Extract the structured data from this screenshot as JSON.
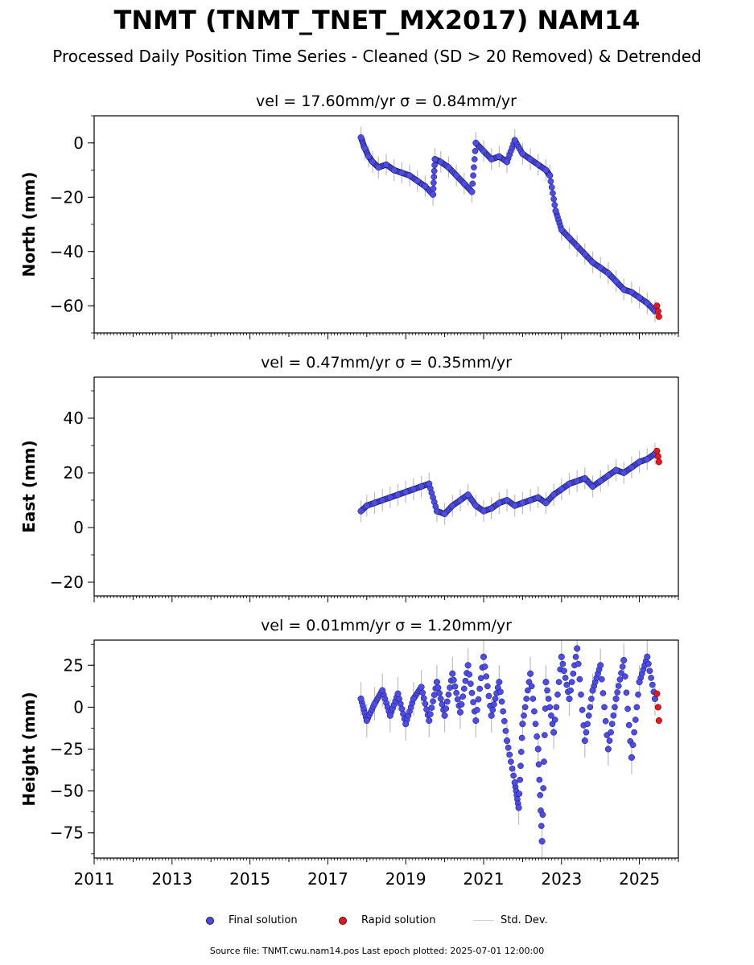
{
  "figure": {
    "title": "TNMT (TNMT_TNET_MX2017) NAM14",
    "subtitle": "Processed Daily Position Time Series - Cleaned (SD > 20 Removed) & Detrended",
    "footer": "Source file: TNMT.cwu.nam14.pos  Last epoch plotted: 2025-07-01 12:00:00"
  },
  "legend": {
    "final_label": "Final solution",
    "rapid_label": "Rapid solution",
    "std_label": "Std. Dev."
  },
  "colors": {
    "final": "#4b4bef",
    "rapid": "#e8151a",
    "std": "#bdbdbd",
    "marker_edge": "#1a1a40"
  },
  "chart_data": [
    {
      "type": "scatter",
      "title": "vel = 17.60mm/yr   σ = 0.84mm/yr",
      "ylabel": "North (mm)",
      "xlim": [
        2011.0,
        2026.0
      ],
      "ylim": [
        -70,
        10
      ],
      "yticks": [
        0,
        -20,
        -40,
        -60
      ],
      "series": [
        {
          "name": "Final solution",
          "x": [
            2017.85,
            2017.95,
            2018.05,
            2018.15,
            2018.3,
            2018.5,
            2018.7,
            2018.9,
            2019.1,
            2019.3,
            2019.5,
            2019.7,
            2019.75,
            2019.9,
            2020.1,
            2020.3,
            2020.5,
            2020.7,
            2020.8,
            2021.0,
            2021.2,
            2021.4,
            2021.6,
            2021.8,
            2022.0,
            2022.2,
            2022.4,
            2022.6,
            2022.7,
            2022.85,
            2023.0,
            2023.2,
            2023.4,
            2023.6,
            2023.8,
            2024.0,
            2024.2,
            2024.4,
            2024.6,
            2024.8,
            2025.0,
            2025.2,
            2025.4
          ],
          "y": [
            2,
            -2,
            -5,
            -7,
            -9,
            -8,
            -10,
            -11,
            -12,
            -14,
            -16,
            -19,
            -6,
            -7,
            -9,
            -12,
            -15,
            -18,
            0,
            -3,
            -6,
            -5,
            -7,
            1,
            -4,
            -6,
            -8,
            -10,
            -12,
            -25,
            -32,
            -35,
            -38,
            -41,
            -44,
            -46,
            -48,
            -51,
            -54,
            -55,
            -57,
            -59,
            -62
          ]
        },
        {
          "name": "Rapid solution",
          "x": [
            2025.45,
            2025.48,
            2025.5
          ],
          "y": [
            -60,
            -62,
            -64
          ]
        }
      ]
    },
    {
      "type": "scatter",
      "title": "vel = 0.47mm/yr   σ = 0.35mm/yr",
      "ylabel": "East (mm)",
      "xlim": [
        2011.0,
        2026.0
      ],
      "ylim": [
        -25,
        55
      ],
      "yticks": [
        40,
        20,
        0,
        -20
      ],
      "series": [
        {
          "name": "Final solution",
          "x": [
            2017.85,
            2018.0,
            2018.2,
            2018.4,
            2018.6,
            2018.8,
            2019.0,
            2019.2,
            2019.4,
            2019.6,
            2019.8,
            2020.0,
            2020.2,
            2020.4,
            2020.6,
            2020.8,
            2021.0,
            2021.2,
            2021.4,
            2021.6,
            2021.8,
            2022.0,
            2022.2,
            2022.4,
            2022.6,
            2022.8,
            2023.0,
            2023.2,
            2023.4,
            2023.6,
            2023.8,
            2024.0,
            2024.2,
            2024.4,
            2024.6,
            2024.8,
            2025.0,
            2025.2,
            2025.4
          ],
          "y": [
            6,
            8,
            9,
            10,
            11,
            12,
            13,
            14,
            15,
            16,
            6,
            5,
            8,
            10,
            12,
            8,
            6,
            7,
            9,
            10,
            8,
            9,
            10,
            11,
            9,
            12,
            14,
            16,
            17,
            18,
            15,
            17,
            19,
            21,
            20,
            22,
            24,
            25,
            27
          ]
        },
        {
          "name": "Rapid solution",
          "x": [
            2025.45,
            2025.48,
            2025.5
          ],
          "y": [
            28,
            26,
            24
          ]
        }
      ]
    },
    {
      "type": "scatter",
      "title": "vel = 0.01mm/yr   σ = 1.20mm/yr",
      "ylabel": "Height (mm)",
      "xlim": [
        2011.0,
        2026.0
      ],
      "ylim": [
        -90,
        40
      ],
      "yticks": [
        25,
        0,
        -25,
        -50,
        -75
      ],
      "series": [
        {
          "name": "Final solution",
          "x": [
            2017.85,
            2018.0,
            2018.2,
            2018.4,
            2018.6,
            2018.8,
            2019.0,
            2019.2,
            2019.4,
            2019.6,
            2019.8,
            2020.0,
            2020.2,
            2020.4,
            2020.6,
            2020.8,
            2021.0,
            2021.2,
            2021.4,
            2021.6,
            2021.8,
            2021.9,
            2022.0,
            2022.2,
            2022.4,
            2022.5,
            2022.6,
            2022.8,
            2023.0,
            2023.2,
            2023.4,
            2023.6,
            2023.8,
            2024.0,
            2024.2,
            2024.4,
            2024.6,
            2024.8,
            2025.0,
            2025.2,
            2025.4
          ],
          "y": [
            5,
            -8,
            2,
            10,
            -5,
            8,
            -10,
            5,
            12,
            -8,
            15,
            -5,
            20,
            -3,
            25,
            -8,
            30,
            -5,
            15,
            -20,
            -45,
            -60,
            -10,
            20,
            -25,
            -80,
            15,
            -15,
            30,
            5,
            35,
            -20,
            10,
            25,
            -25,
            5,
            28,
            -30,
            15,
            30,
            5
          ]
        },
        {
          "name": "Rapid solution",
          "x": [
            2025.45,
            2025.48,
            2025.5
          ],
          "y": [
            8,
            0,
            -8
          ]
        }
      ]
    }
  ]
}
